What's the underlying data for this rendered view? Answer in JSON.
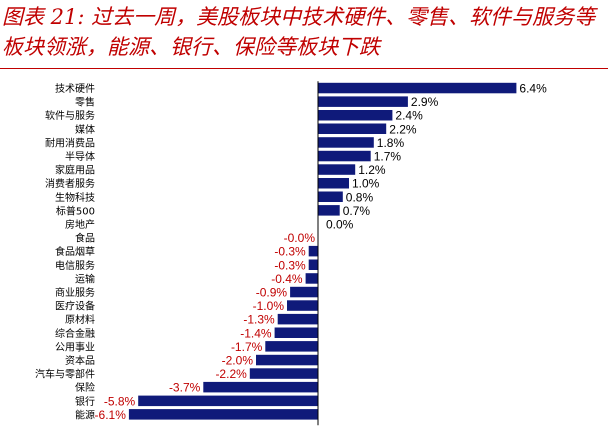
{
  "title": "图表 21: 过去一周，美股板块中技术硬件、零售、软件与服务等板块领涨，能源、银行、保险等板块下跌",
  "colors": {
    "bar": "#0f1a7a",
    "positive_label": "#000000",
    "negative_label": "#c00000",
    "title": "#c00000"
  },
  "chart_data": {
    "type": "bar",
    "orientation": "horizontal",
    "categories": [
      "技术硬件",
      "零售",
      "软件与服务",
      "媒体",
      "耐用消费品",
      "半导体",
      "家庭用品",
      "消费者服务",
      "生物科技",
      "标普500",
      "房地产",
      "食品",
      "食品烟草",
      "电信服务",
      "运输",
      "商业服务",
      "医疗设备",
      "原材料",
      "综合金融",
      "公用事业",
      "资本品",
      "汽车与零部件",
      "保险",
      "银行",
      "能源"
    ],
    "values": [
      6.4,
      2.9,
      2.4,
      2.2,
      1.8,
      1.7,
      1.2,
      1.0,
      0.8,
      0.7,
      0.0,
      -0.0,
      -0.3,
      -0.3,
      -0.4,
      -0.9,
      -1.0,
      -1.3,
      -1.4,
      -1.7,
      -2.0,
      -2.2,
      -3.7,
      -5.8,
      -6.1
    ],
    "labels": [
      "6.4%",
      "2.9%",
      "2.4%",
      "2.2%",
      "1.8%",
      "1.7%",
      "1.2%",
      "1.0%",
      "0.8%",
      "0.7%",
      "0.0%",
      "-0.0%",
      "-0.3%",
      "-0.3%",
      "-0.4%",
      "-0.9%",
      "-1.0%",
      "-1.3%",
      "-1.4%",
      "-1.7%",
      "-2.0%",
      "-2.2%",
      "-3.7%",
      "-5.8%",
      "-6.1%"
    ],
    "unit": "%",
    "xlim": [
      -6.1,
      6.4
    ],
    "grid": false,
    "legend": "none"
  }
}
